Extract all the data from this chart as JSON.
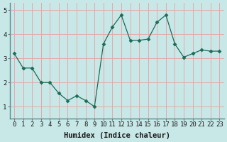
{
  "x": [
    0,
    1,
    2,
    3,
    4,
    5,
    6,
    7,
    8,
    9,
    10,
    11,
    12,
    13,
    14,
    15,
    16,
    17,
    18,
    19,
    20,
    21,
    22,
    23
  ],
  "y": [
    3.2,
    2.6,
    2.6,
    2.0,
    2.0,
    1.55,
    1.25,
    1.45,
    1.25,
    1.0,
    3.6,
    4.3,
    4.8,
    3.75,
    3.75,
    3.8,
    4.5,
    4.8,
    3.6,
    3.05,
    3.2,
    3.35,
    3.3,
    3.3
  ],
  "line_color": "#1a6b5a",
  "marker": "D",
  "marker_size": 2.5,
  "bg_color": "#c8e8e8",
  "grid_color": "#e8a0a0",
  "xlabel": "Humidex (Indice chaleur)",
  "ylim": [
    0.5,
    5.3
  ],
  "xlim": [
    -0.5,
    23.5
  ],
  "yticks": [
    1,
    2,
    3,
    4,
    5
  ],
  "xticks": [
    0,
    1,
    2,
    3,
    4,
    5,
    6,
    7,
    8,
    9,
    10,
    11,
    12,
    13,
    14,
    15,
    16,
    17,
    18,
    19,
    20,
    21,
    22,
    23
  ],
  "tick_label_fontsize": 6.5,
  "xlabel_fontsize": 7.5,
  "spine_color": "#5a8a8a",
  "tick_color": "#5a8a8a"
}
